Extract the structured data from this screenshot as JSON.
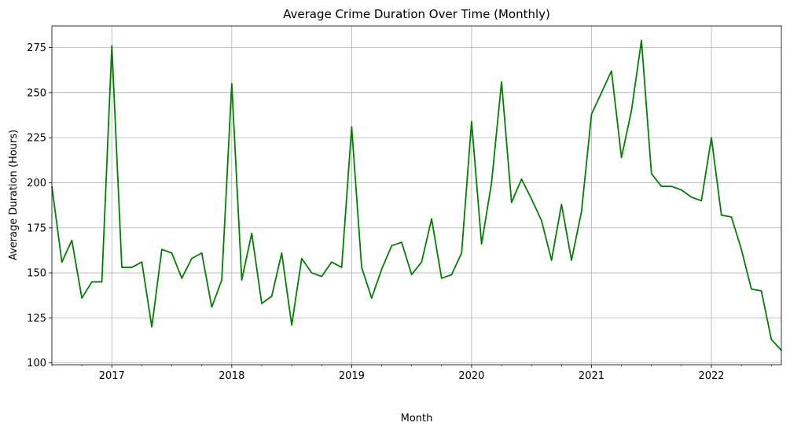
{
  "chart_data": {
    "type": "line",
    "title": "Average Crime Duration Over Time (Monthly)",
    "xlabel": "Month",
    "ylabel": "Average Duration (Hours)",
    "grid": true,
    "line_color": "#008000",
    "x_start": "2016-07",
    "x_end": "2022-08",
    "xlim": [
      "2016-07",
      "2022-08"
    ],
    "ylim": [
      99,
      287
    ],
    "x_major_ticks": [
      {
        "date": "2017-01",
        "label": "2017"
      },
      {
        "date": "2018-01",
        "label": "2018"
      },
      {
        "date": "2019-01",
        "label": "2019"
      },
      {
        "date": "2020-01",
        "label": "2020"
      },
      {
        "date": "2021-01",
        "label": "2021"
      },
      {
        "date": "2022-01",
        "label": "2022"
      }
    ],
    "y_ticks": [
      100,
      125,
      150,
      175,
      200,
      225,
      250,
      275
    ],
    "x": [
      "2016-07",
      "2016-08",
      "2016-09",
      "2016-10",
      "2016-11",
      "2016-12",
      "2017-01",
      "2017-02",
      "2017-03",
      "2017-04",
      "2017-05",
      "2017-06",
      "2017-07",
      "2017-08",
      "2017-09",
      "2017-10",
      "2017-11",
      "2017-12",
      "2018-01",
      "2018-02",
      "2018-03",
      "2018-04",
      "2018-05",
      "2018-06",
      "2018-07",
      "2018-08",
      "2018-09",
      "2018-10",
      "2018-11",
      "2018-12",
      "2019-01",
      "2019-02",
      "2019-03",
      "2019-04",
      "2019-05",
      "2019-06",
      "2019-07",
      "2019-08",
      "2019-09",
      "2019-10",
      "2019-11",
      "2019-12",
      "2020-01",
      "2020-02",
      "2020-03",
      "2020-04",
      "2020-05",
      "2020-06",
      "2020-07",
      "2020-08",
      "2020-09",
      "2020-10",
      "2020-11",
      "2020-12",
      "2021-01",
      "2021-02",
      "2021-03",
      "2021-04",
      "2021-05",
      "2021-06",
      "2021-07",
      "2021-08",
      "2021-09",
      "2021-10",
      "2021-11",
      "2021-12",
      "2022-01",
      "2022-02",
      "2022-03",
      "2022-04",
      "2022-05",
      "2022-06",
      "2022-07",
      "2022-08"
    ],
    "series": [
      {
        "values": [
          198,
          156,
          168,
          136,
          145,
          145,
          276,
          153,
          153,
          156,
          120,
          163,
          161,
          147,
          158,
          161,
          131,
          146,
          255,
          146,
          172,
          133,
          137,
          161,
          121,
          158,
          150,
          148,
          156,
          153,
          231,
          153,
          136,
          152,
          165,
          167,
          149,
          156,
          180,
          147,
          149,
          161,
          234,
          166,
          200,
          256,
          189,
          202,
          191,
          179,
          157,
          188,
          157,
          184,
          238,
          250,
          262,
          214,
          240,
          279,
          205,
          198,
          198,
          196,
          192,
          190,
          225,
          182,
          181,
          163,
          141,
          140,
          113,
          107
        ]
      }
    ]
  }
}
